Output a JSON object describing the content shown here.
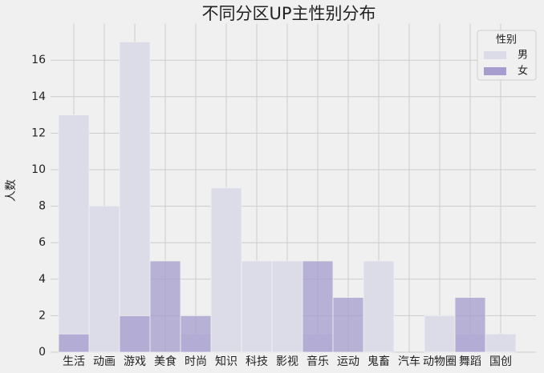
{
  "chart_data": {
    "type": "hist_layered",
    "title": "不同分区UP主性别分布",
    "y_label": "人数",
    "categories": [
      "生活",
      "动画",
      "游戏",
      "美食",
      "时尚",
      "知识",
      "科技",
      "影视",
      "音乐",
      "运动",
      "鬼畜",
      "汽车",
      "动物圈",
      "舞蹈",
      "国创"
    ],
    "series": [
      {
        "name": "男",
        "color": "#dcdce8",
        "values": [
          13,
          8,
          17,
          0,
          1,
          9,
          5,
          5,
          1,
          0,
          5,
          0,
          2,
          1,
          1
        ]
      },
      {
        "name": "女",
        "color": "#a69cce",
        "values": [
          1,
          0,
          2,
          5,
          2,
          0,
          0,
          0,
          5,
          3,
          0,
          0,
          0,
          3,
          0
        ]
      }
    ],
    "legend_title": "性别",
    "legend": "upper right",
    "ylim": [
      0,
      18
    ],
    "yticks": [
      0,
      2,
      4,
      6,
      8,
      10,
      12,
      14,
      16
    ],
    "grid": true
  }
}
